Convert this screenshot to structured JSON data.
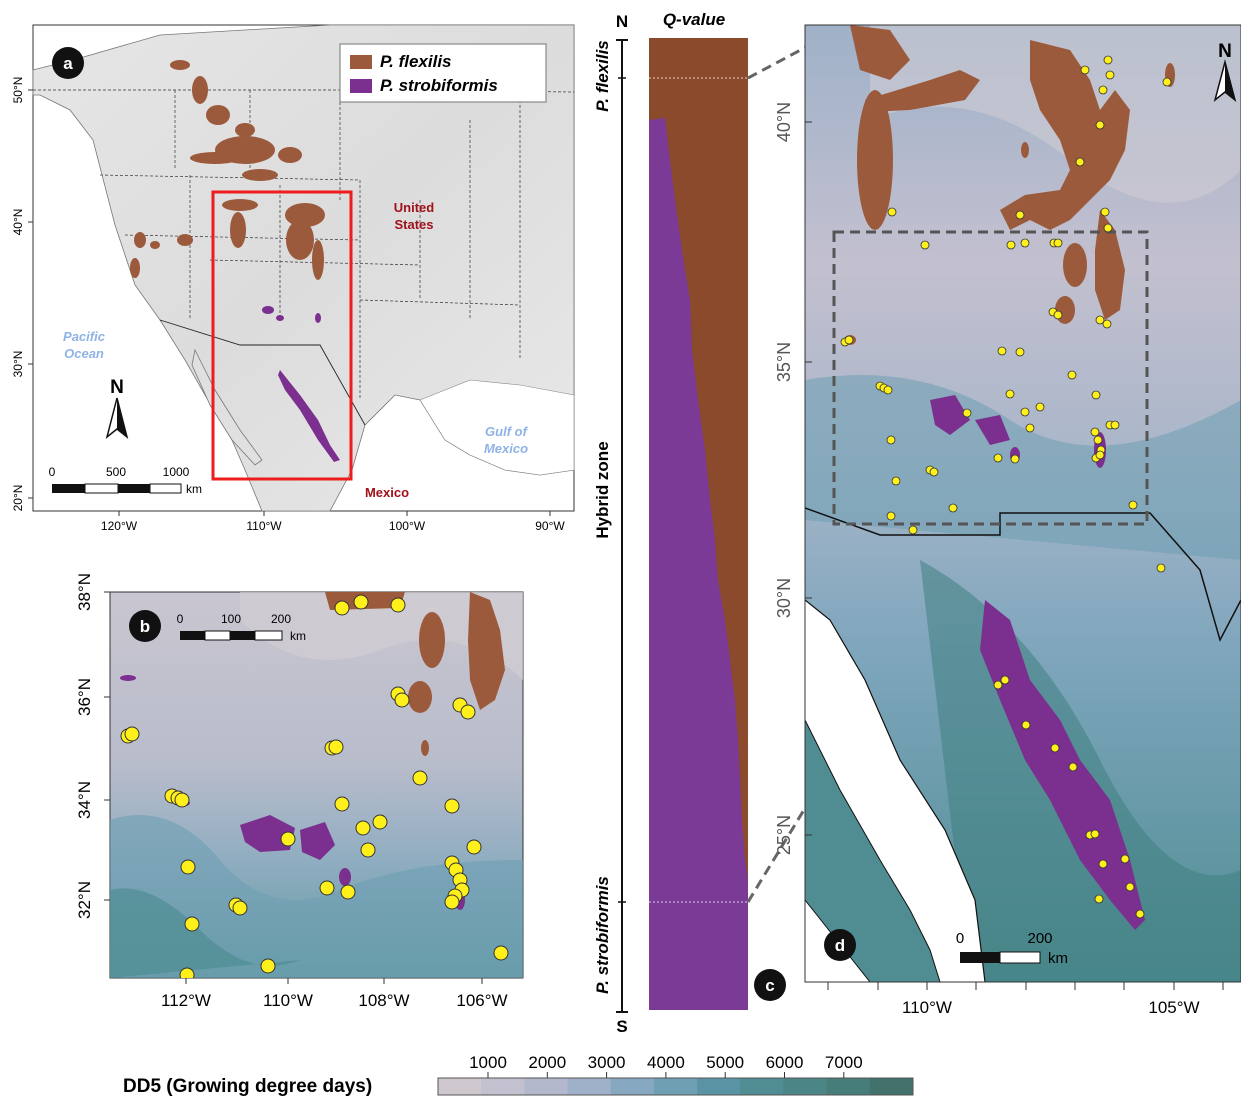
{
  "panel_a": {
    "badge": "a",
    "legend": {
      "items": [
        {
          "name": "P. flexilis",
          "color": "#9c5a3c"
        },
        {
          "name": "P. strobiformis",
          "color": "#7b2f8e"
        }
      ]
    },
    "labels": {
      "us": [
        "United",
        "States"
      ],
      "mexico": "Mexico",
      "pacific": [
        "Pacific",
        "Ocean"
      ],
      "gulf": [
        "Gulf of",
        "Mexico"
      ],
      "north": "N"
    },
    "scale": {
      "ticks": [
        "0",
        "500",
        "1000"
      ],
      "unit": "km"
    },
    "lat_ticks": [
      "50°N",
      "40°N",
      "30°N",
      "20°N"
    ],
    "lon_ticks": [
      "120°W",
      "110°W",
      "100°W",
      "90°W"
    ]
  },
  "panel_b": {
    "badge": "b",
    "scale": {
      "ticks": [
        "0",
        "100",
        "200"
      ],
      "unit": "km"
    },
    "lat_ticks": [
      "38°N",
      "36°N",
      "34°N",
      "32°N"
    ],
    "lon_ticks": [
      "112°W",
      "110°W",
      "108°W",
      "106°W"
    ]
  },
  "panel_c": {
    "badge": "c",
    "title": "Q-value",
    "top_label": "P. flexilis",
    "middle_label": "Hybrid zone",
    "bottom_label": "P. strobiformis",
    "north": "N",
    "south": "S",
    "colors": {
      "flexilis": "#8b4a2b",
      "strobiformis": "#7b3a95"
    }
  },
  "panel_d": {
    "badge": "d",
    "north": "N",
    "scale": {
      "ticks": [
        "0",
        "200"
      ],
      "unit": "km"
    },
    "lat_ticks": [
      "40°N",
      "35°N",
      "30°N",
      "25°N"
    ],
    "lon_ticks": [
      "110°W",
      "105°W"
    ]
  },
  "colorbar": {
    "title": "DD5 (Growing degree days)",
    "ticks": [
      "1000",
      "2000",
      "3000",
      "4000",
      "5000",
      "6000",
      "7000"
    ],
    "colors": [
      "#cfc8cf",
      "#c3c0cf",
      "#b3b8cd",
      "#9fb1c8",
      "#86a8c0",
      "#6e9fb3",
      "#5a94a4",
      "#4f8d93",
      "#4b8585",
      "#477d78",
      "#43726c"
    ]
  },
  "colors": {
    "flexilis": "#9c5a3c",
    "strobiformis": "#7b2f8e",
    "sample_point": "#ffef1a",
    "highlight_box": "#ee1c1c"
  }
}
